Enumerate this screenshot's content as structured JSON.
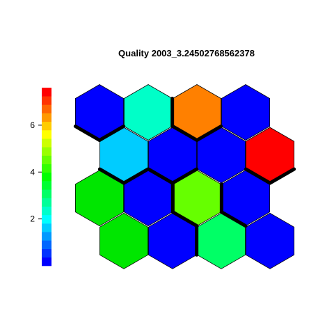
{
  "chart_data": {
    "type": "heatmap",
    "subtype": "som-hexagonal-property-map",
    "title": "Quality 2003_3.24502768562378",
    "grid": {
      "rows": 4,
      "cols": 4,
      "topology": "hexagonal"
    },
    "rows": [
      {
        "row_label": "top",
        "cell_colors": [
          "#0000FF",
          "#00FFC8",
          "#FF8000",
          "#0000FF"
        ]
      },
      {
        "row_label": "second",
        "cell_colors": [
          "#00CCFF",
          "#0000FF",
          "#0000FF",
          "#FF0000"
        ]
      },
      {
        "row_label": "third",
        "cell_colors": [
          "#00E600",
          "#0000FF",
          "#66FF00",
          "#0000FF"
        ]
      },
      {
        "row_label": "bottom",
        "cell_colors": [
          "#00E600",
          "#0000FF",
          "#00FF66",
          "#0000FF"
        ]
      }
    ],
    "colorbar": {
      "range": [
        0,
        7.6
      ],
      "tick_values": [
        2,
        4,
        6
      ],
      "tick_labels": [
        "2",
        "4",
        "6"
      ],
      "colors": [
        "#0000FF",
        "#0033FF",
        "#0066FF",
        "#0099FF",
        "#00CCFF",
        "#00FFFF",
        "#00FFCC",
        "#00FF99",
        "#00FF66",
        "#00FF33",
        "#00FF00",
        "#33FF00",
        "#66FF00",
        "#99FF00",
        "#CCFF00",
        "#FFFF00",
        "#FFCC00",
        "#FF9900",
        "#FF6600",
        "#FF3300",
        "#FF0000"
      ]
    },
    "cluster_boundary_color": "#000000",
    "cell_border_color": "#000000"
  }
}
